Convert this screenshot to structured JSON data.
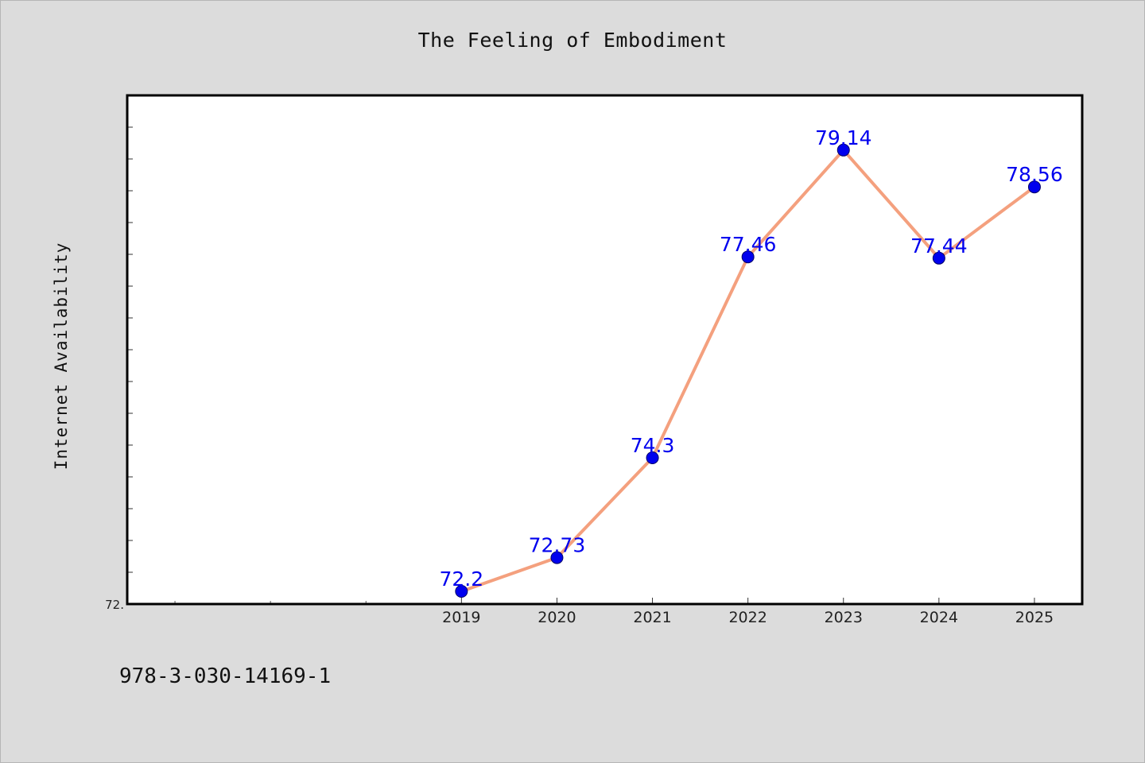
{
  "chart_data": {
    "type": "line",
    "title": "The Feeling of Embodiment",
    "xlabel": "",
    "ylabel": "Internet Availability",
    "categories": [
      "2019",
      "2020",
      "2021",
      "2022",
      "2023",
      "2024",
      "2025"
    ],
    "series": [
      {
        "values": [
          72.2,
          72.73,
          74.3,
          77.46,
          79.14,
          77.44,
          78.56
        ],
        "data_labels": [
          "72.2",
          "72.73",
          "74.3",
          "77.46",
          "79.14",
          "77.44",
          "78.56"
        ]
      }
    ],
    "x_range": [
      2015.5,
      2025.5
    ],
    "ylim": [
      72.0,
      80.0
    ],
    "y_tick_labels": [
      "72."
    ],
    "grid": false,
    "legend": "none",
    "colors": {
      "line": "#f4a07e",
      "marker": "#0000ee",
      "data_label": "#0000ee",
      "background": "#dcdcdc",
      "plot_area": "#ffffff"
    }
  },
  "footer": {
    "isbn": "978-3-030-14169-1"
  }
}
